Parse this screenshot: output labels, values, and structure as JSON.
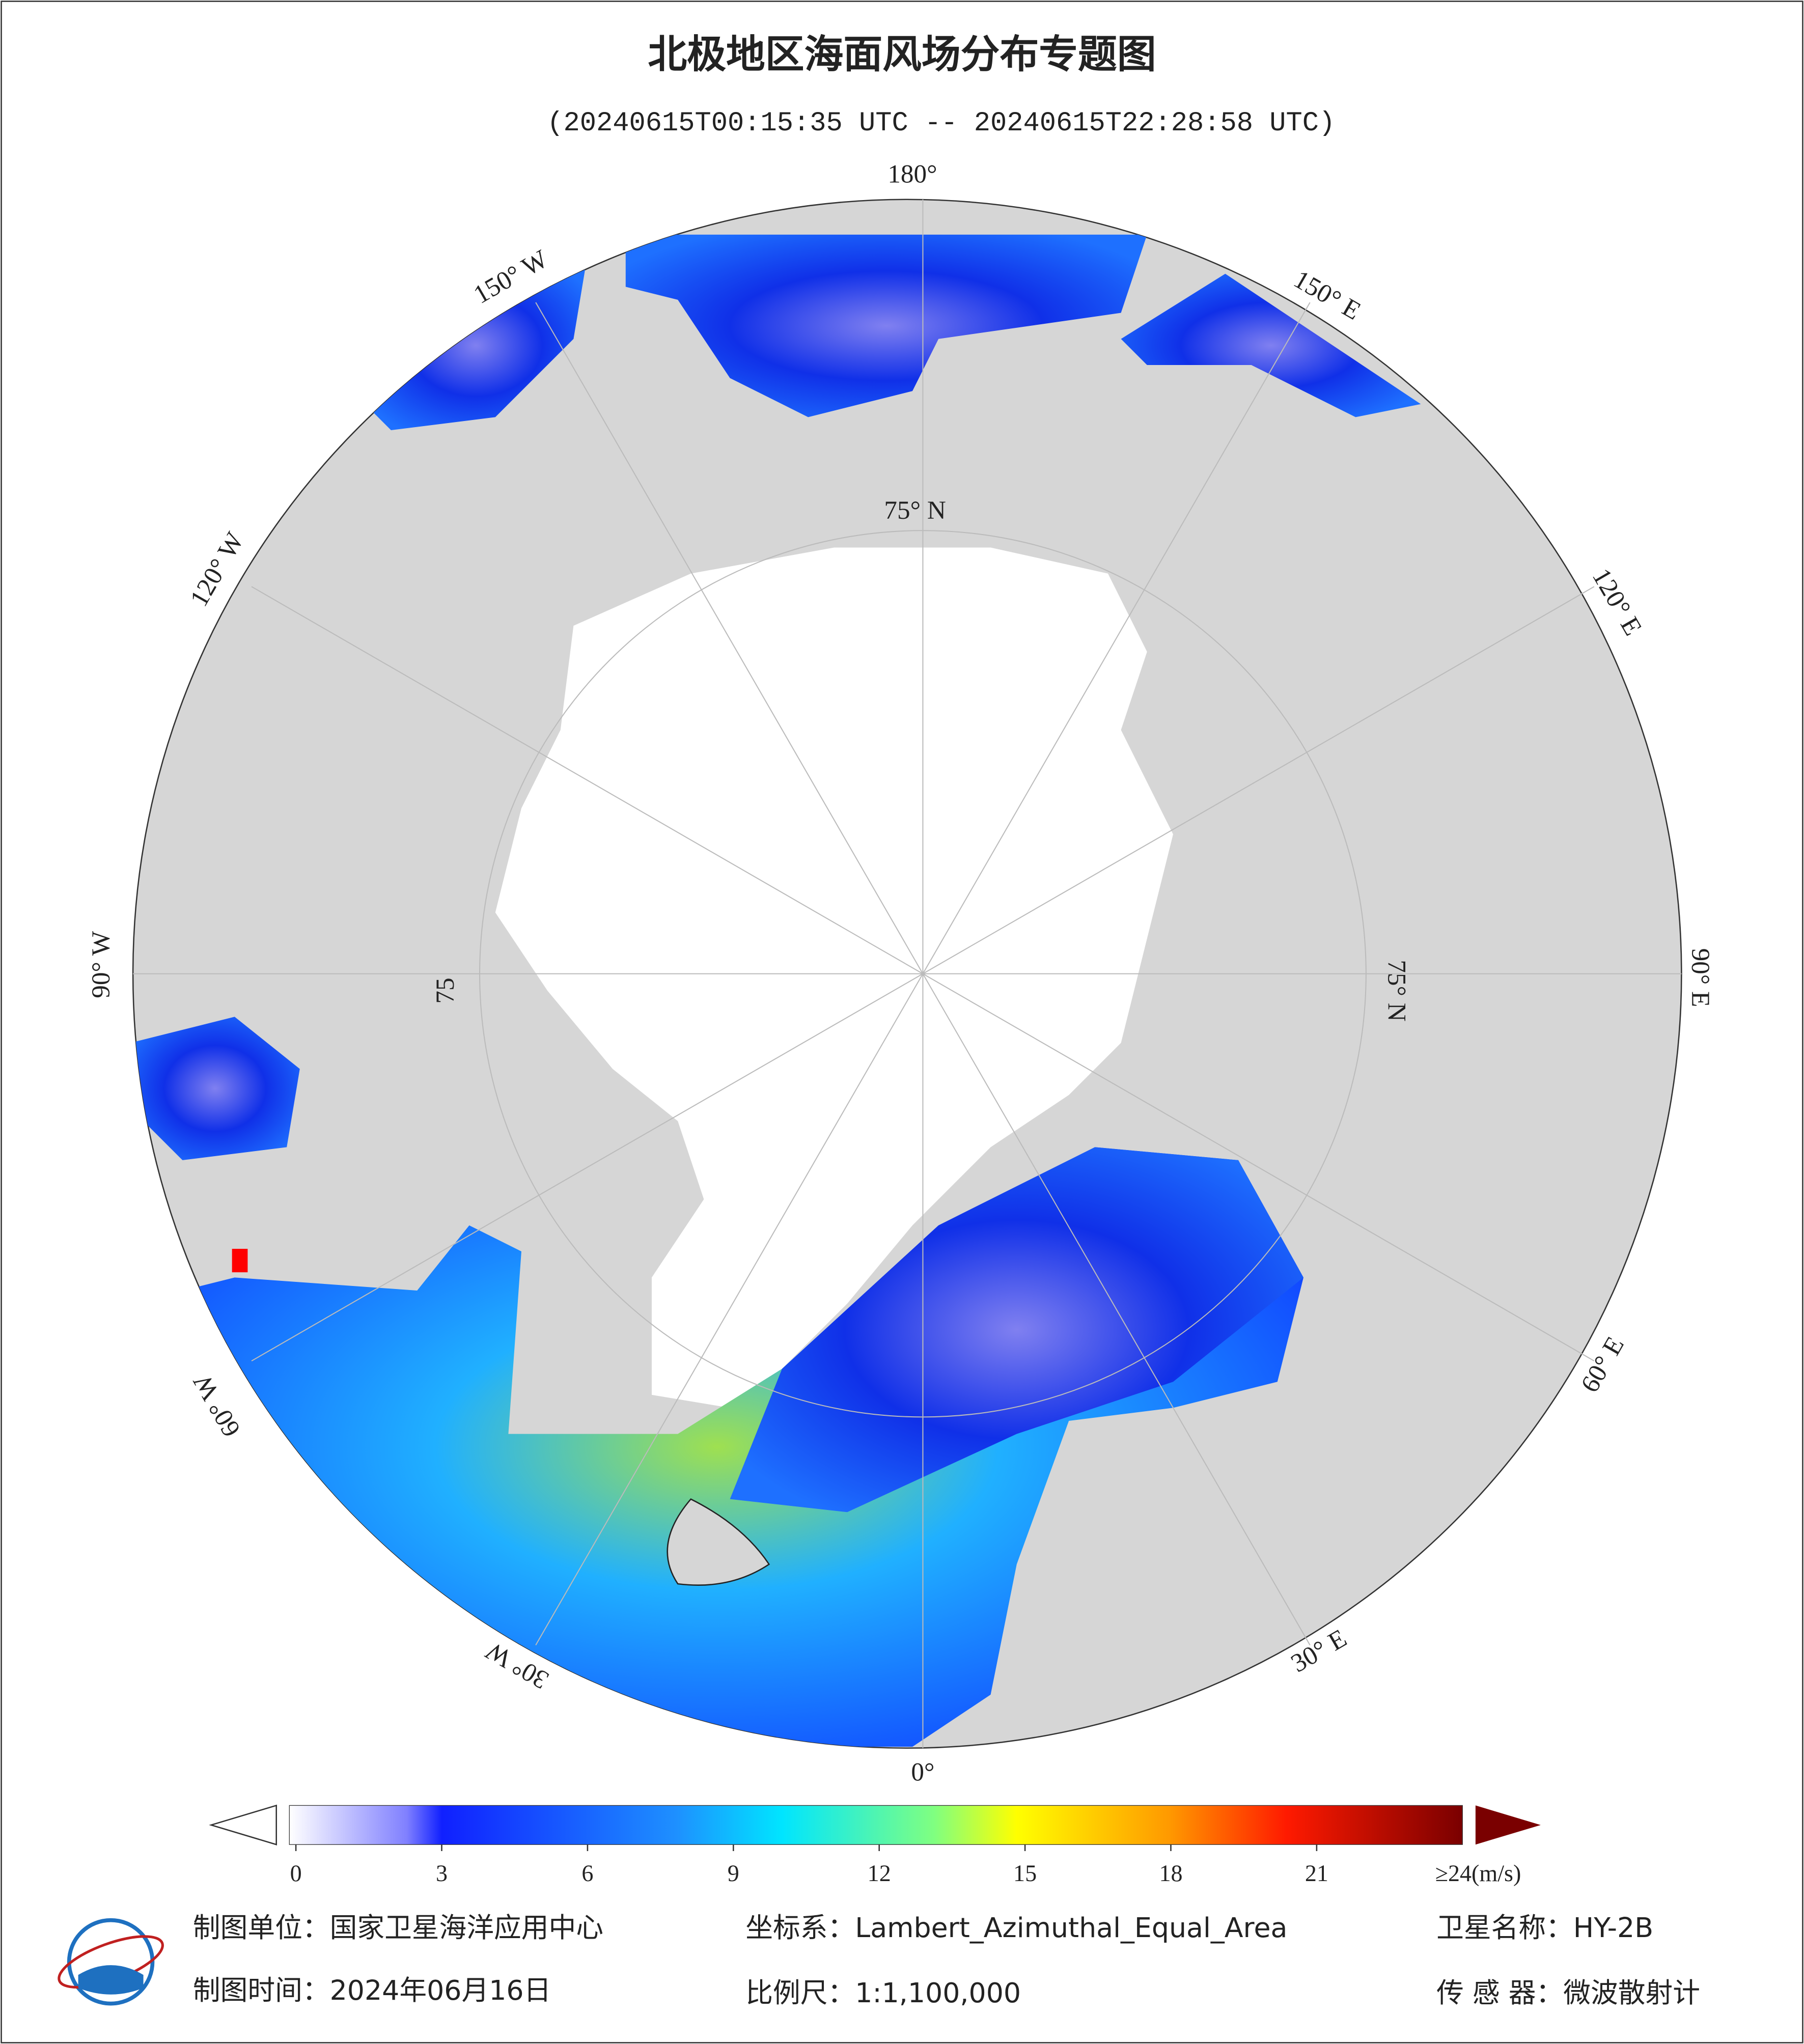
{
  "header": {
    "title": "北极地区海面风场分布专题图",
    "subtitle": "(20240615T00:15:35 UTC -- 20240615T22:28:58 UTC)"
  },
  "map": {
    "lon_labels": [
      "180°",
      "150° E",
      "120° E",
      "90° E",
      "60° E",
      "30° E",
      "0°",
      "30° W",
      "60° W",
      "90° W",
      "120° W",
      "150° W"
    ],
    "lat_labels": [
      "75° N",
      "75° N",
      "75"
    ]
  },
  "colorbar": {
    "lim": [
      0,
      24
    ],
    "ticks": [
      0,
      3,
      6,
      9,
      12,
      15,
      18,
      21
    ],
    "max_label": "≥24(m/s)"
  },
  "footer": {
    "unit": "制图单位：国家卫星海洋应用中心",
    "crs": "坐标系：Lambert_Azimuthal_Equal_Area",
    "satellite": "卫星名称：HY-2B",
    "date": "制图时间：2024年06月16日",
    "scale": "比例尺：1:1,100,000",
    "sensor": "传 感 器：微波散射计"
  }
}
